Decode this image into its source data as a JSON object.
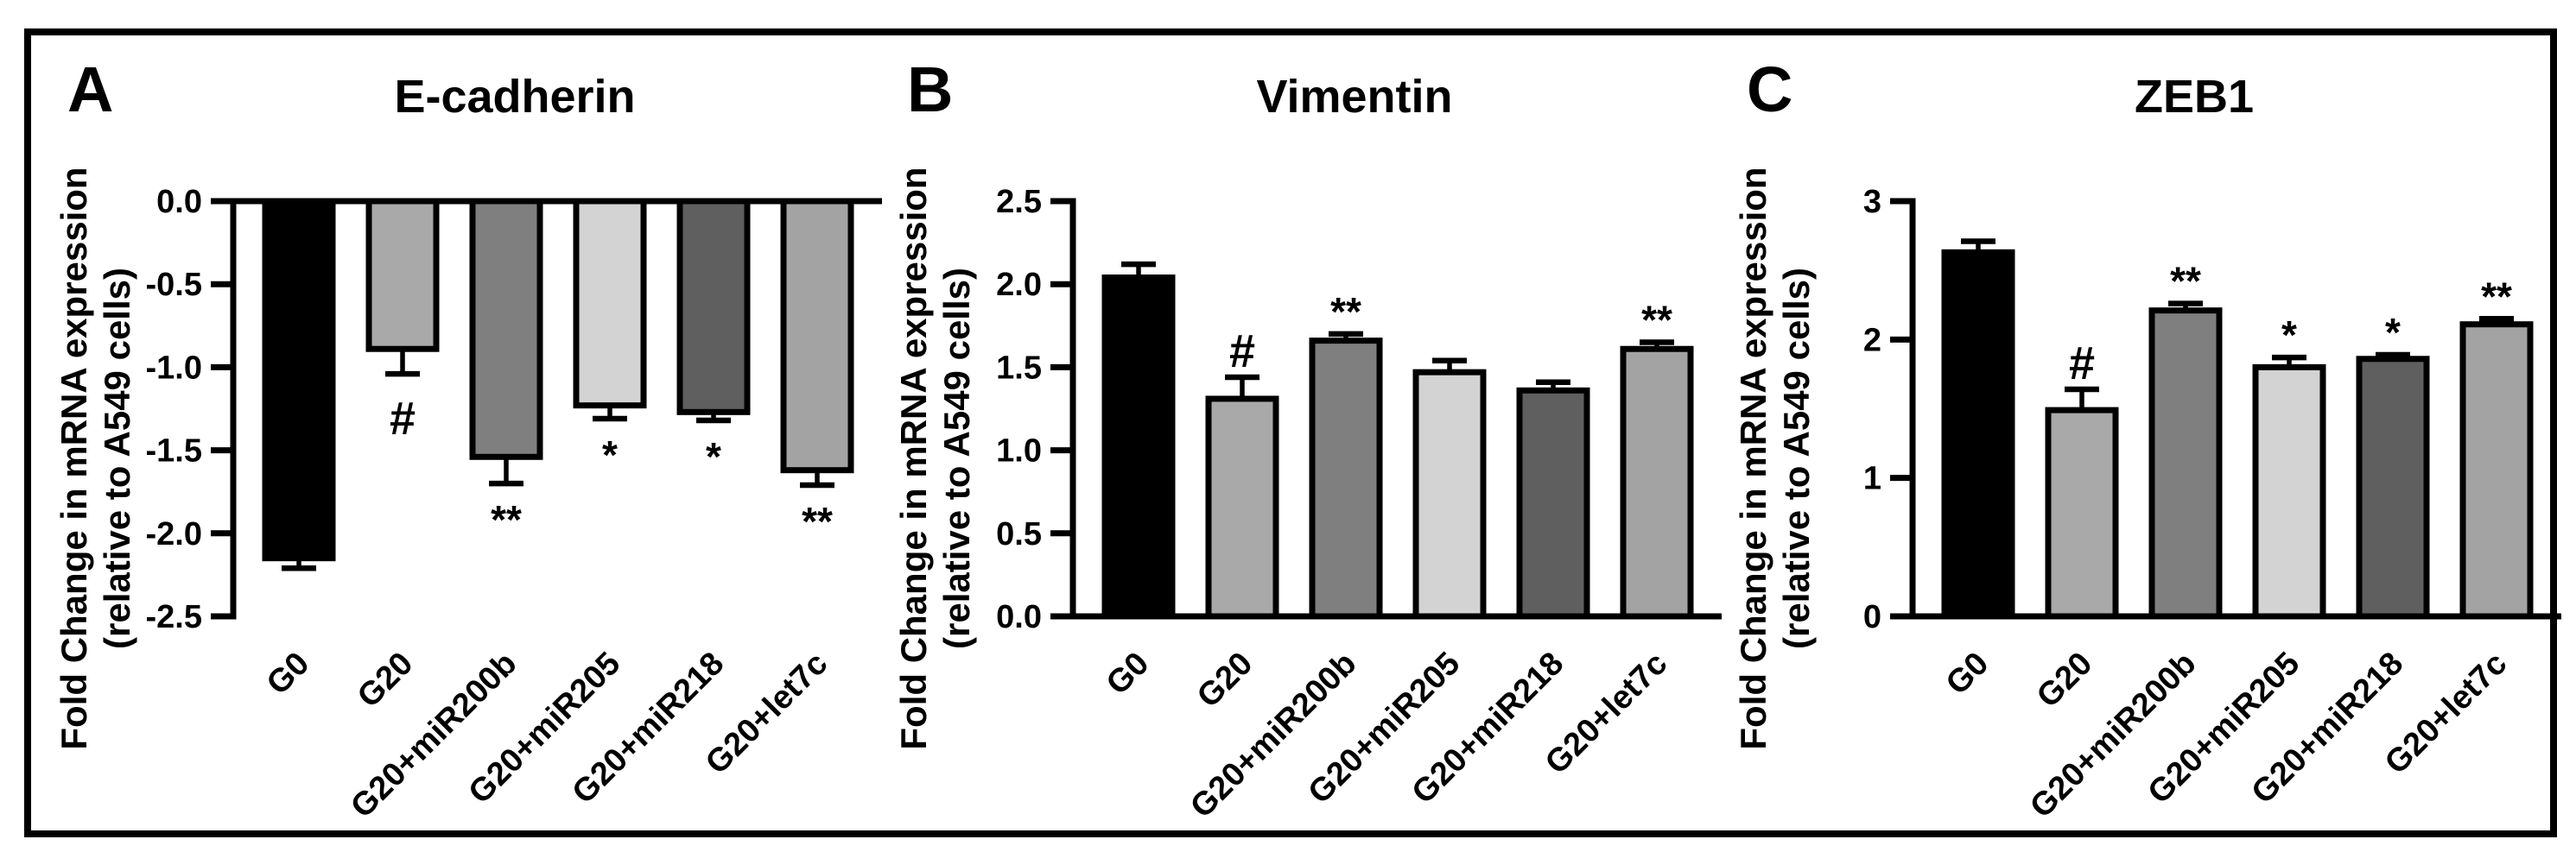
{
  "figure": {
    "background": "#ffffff",
    "frame_color": "#000000"
  },
  "chart_data": [
    {
      "type": "bar",
      "panel_letter": "A",
      "title": "E-cadherin",
      "ylabel_line1": "Fold Change in mRNA expression",
      "ylabel_line2": "(relative to A549 cells)",
      "categories": [
        "G0",
        "G20",
        "G20+miR200b",
        "G20+miR205",
        "G20+miR218",
        "G20+let7c"
      ],
      "values": [
        -2.15,
        -0.89,
        -1.54,
        -1.23,
        -1.27,
        -1.62
      ],
      "errors": [
        0.06,
        0.15,
        0.16,
        0.08,
        0.05,
        0.09
      ],
      "significance": [
        "",
        "#",
        "**",
        "*",
        "*",
        "**"
      ],
      "bar_colors": [
        "#000000",
        "#a9a9a9",
        "#7f7f7f",
        "#d3d3d3",
        "#5f5f5f",
        "#a3a3a3"
      ],
      "bar_border_color": "#000000",
      "ylim": [
        -2.5,
        0
      ],
      "ytick_values": [
        0,
        -0.5,
        -1,
        -1.5,
        -2,
        -2.5
      ],
      "ytick_labels": [
        "0.0",
        "-0.5",
        "-1.0",
        "-1.5",
        "-2.0",
        "-2.5"
      ],
      "grid": false,
      "legend": "none",
      "error_bars": "one-sided outward"
    },
    {
      "type": "bar",
      "panel_letter": "B",
      "title": "Vimentin",
      "ylabel_line1": "Fold Change in mRNA expression",
      "ylabel_line2": "(relative to A549 cells)",
      "categories": [
        "G0",
        "G20",
        "G20+miR200b",
        "G20+miR205",
        "G20+miR218",
        "G20+let7c"
      ],
      "values": [
        2.04,
        1.31,
        1.66,
        1.47,
        1.36,
        1.61
      ],
      "errors": [
        0.08,
        0.13,
        0.04,
        0.07,
        0.05,
        0.04
      ],
      "significance": [
        "",
        "#",
        "**",
        "",
        "",
        "**"
      ],
      "bar_colors": [
        "#000000",
        "#a9a9a9",
        "#7f7f7f",
        "#d3d3d3",
        "#5f5f5f",
        "#a3a3a3"
      ],
      "bar_border_color": "#000000",
      "ylim": [
        0,
        2.5
      ],
      "ytick_values": [
        0,
        0.5,
        1,
        1.5,
        2,
        2.5
      ],
      "ytick_labels": [
        "0.0",
        "0.5",
        "1.0",
        "1.5",
        "2.0",
        "2.5"
      ],
      "grid": false,
      "legend": "none",
      "error_bars": "one-sided outward"
    },
    {
      "type": "bar",
      "panel_letter": "C",
      "title": "ZEB1",
      "ylabel_line1": "Fold Change in mRNA expression",
      "ylabel_line2": "(relative to A549 cells)",
      "categories": [
        "G0",
        "G20",
        "G20+miR200b",
        "G20+miR205",
        "G20+miR218",
        "G20+let7c"
      ],
      "values": [
        2.63,
        1.49,
        2.21,
        1.8,
        1.86,
        2.11
      ],
      "errors": [
        0.08,
        0.15,
        0.05,
        0.07,
        0.03,
        0.04
      ],
      "significance": [
        "",
        "#",
        "**",
        "*",
        "*",
        "**"
      ],
      "bar_colors": [
        "#000000",
        "#a9a9a9",
        "#7f7f7f",
        "#d3d3d3",
        "#5f5f5f",
        "#a3a3a3"
      ],
      "bar_border_color": "#000000",
      "ylim": [
        0,
        3
      ],
      "ytick_values": [
        0,
        1,
        2,
        3
      ],
      "ytick_labels": [
        "0",
        "1",
        "2",
        "3"
      ],
      "grid": false,
      "legend": "none",
      "error_bars": "one-sided outward"
    }
  ]
}
